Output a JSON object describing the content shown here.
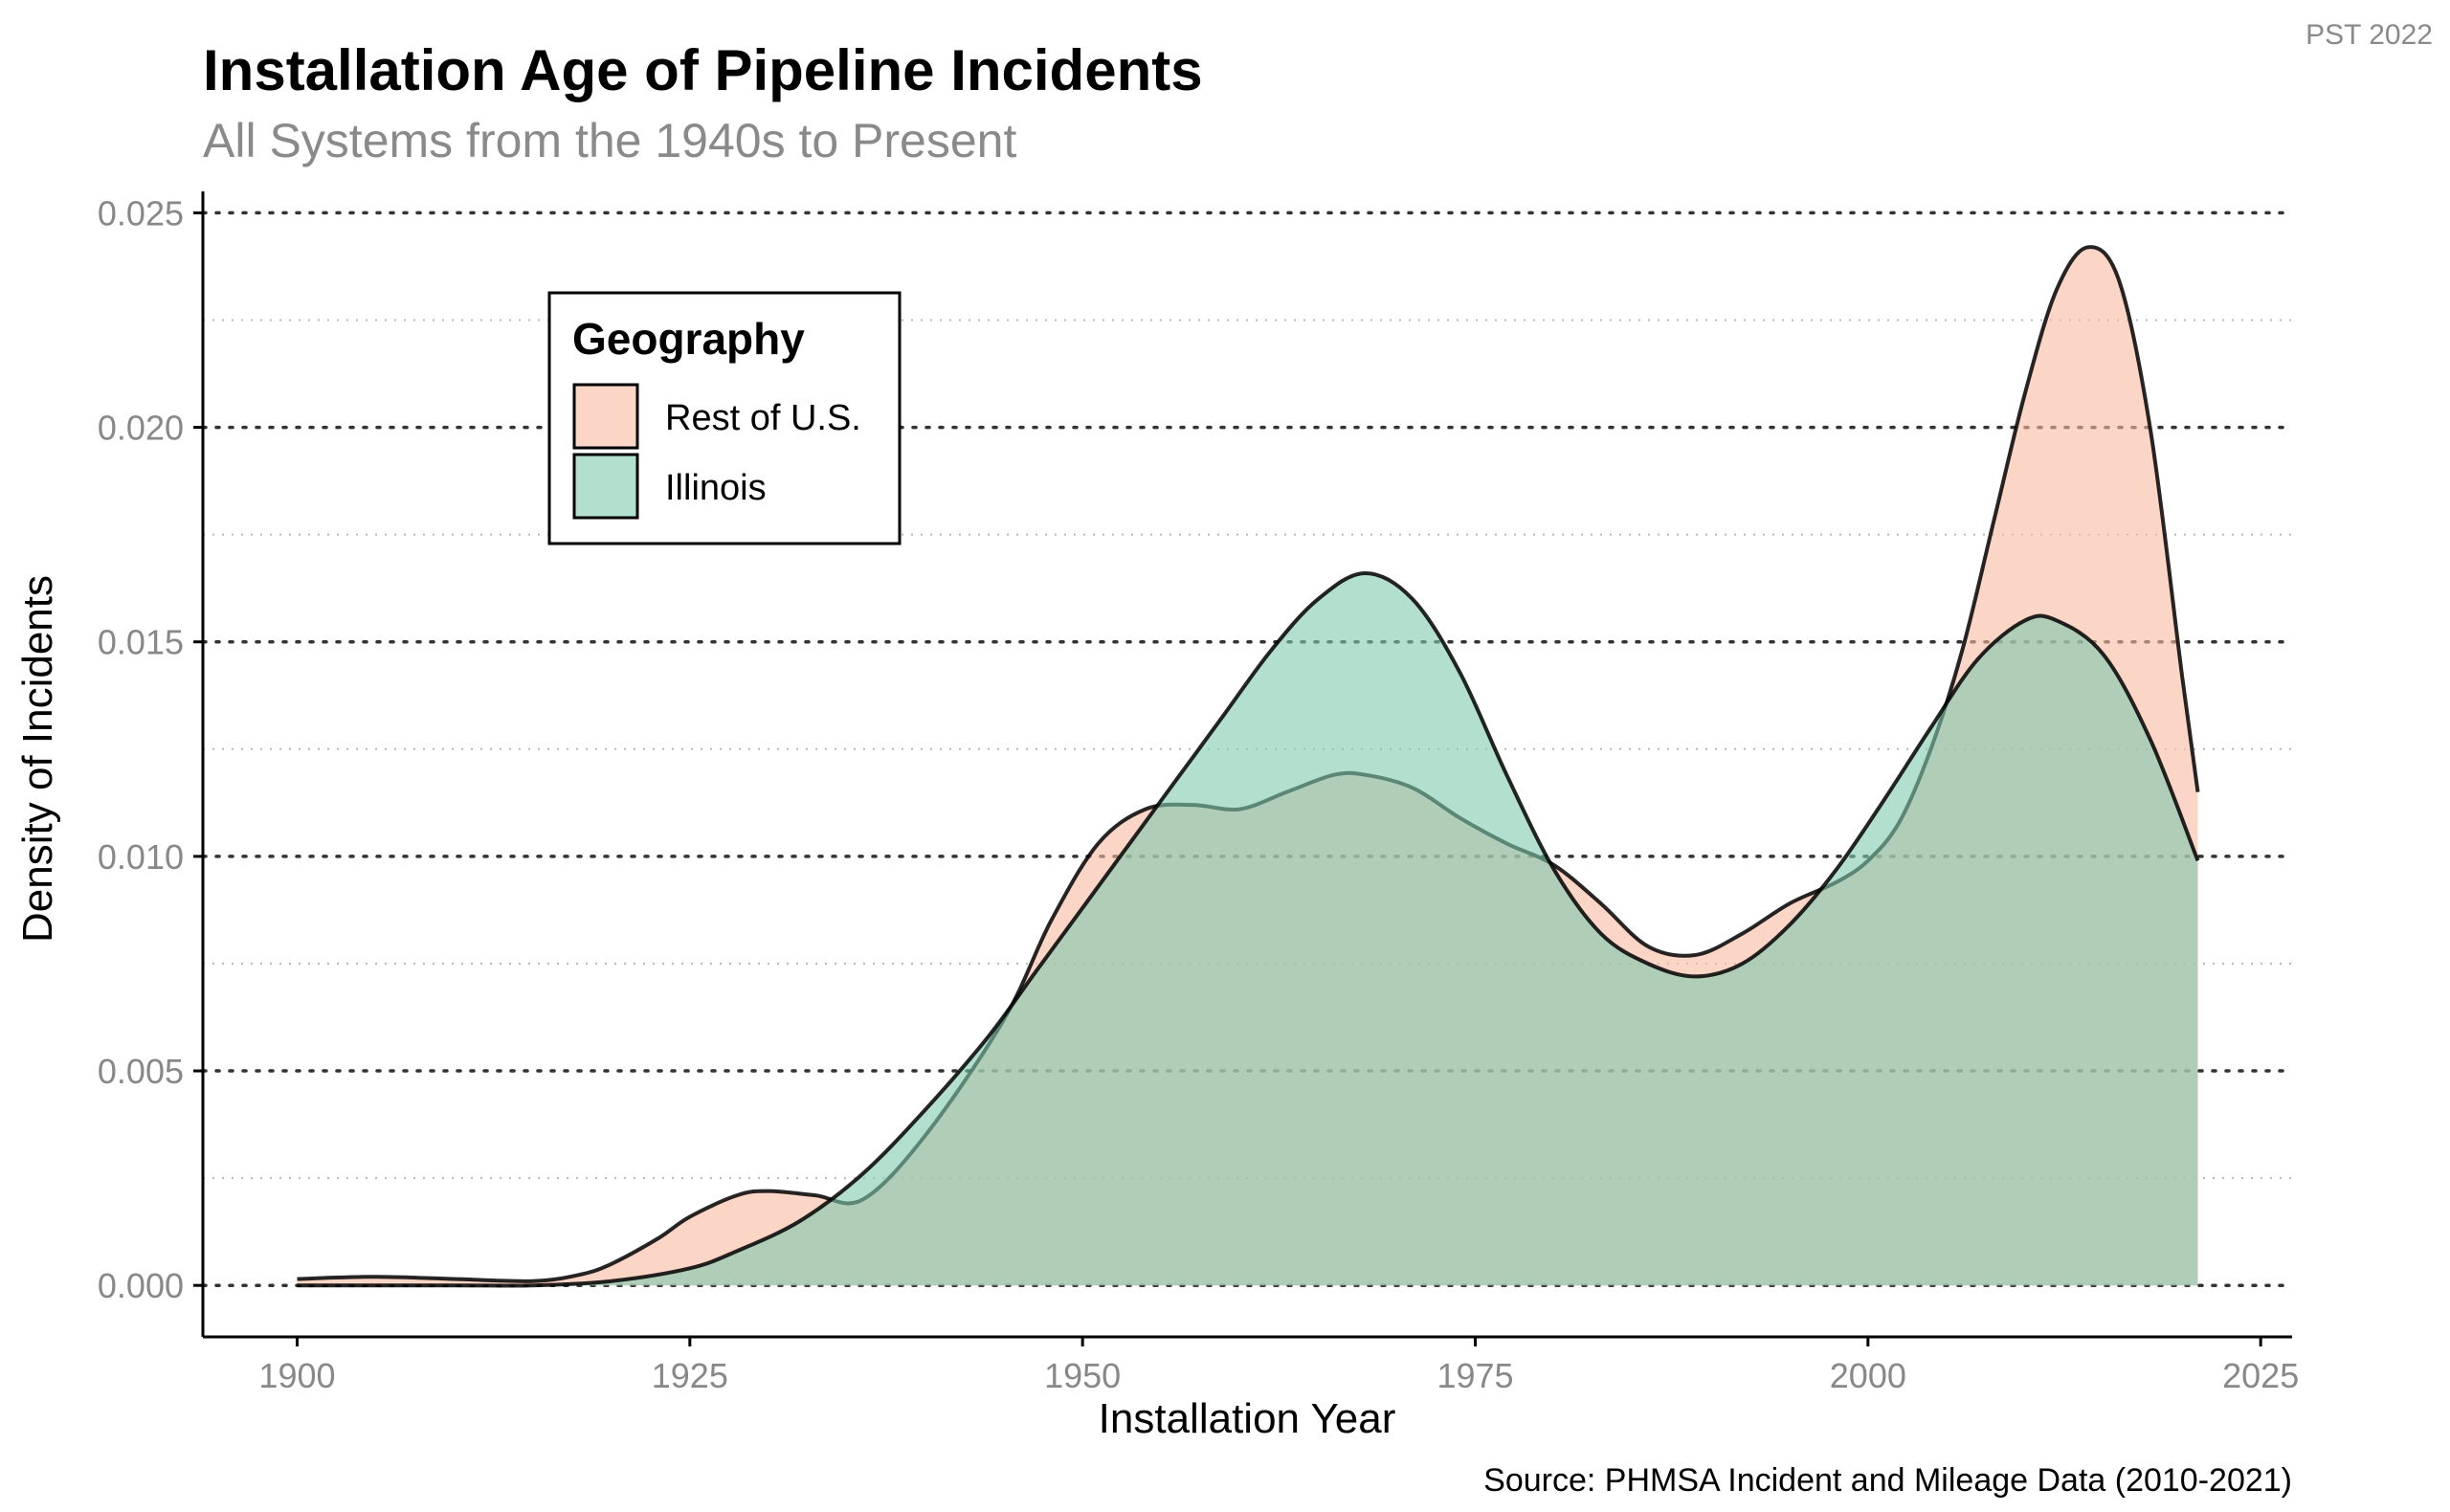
{
  "corner_note": "PST 2022",
  "chart_data": {
    "type": "area",
    "title": "Installation Age of Pipeline Incidents",
    "subtitle": "All Systems from the 1940s to Present",
    "xlabel": "Installation Year",
    "ylabel": "Density of Incidents",
    "caption": "Source: PHMSA Incident and Mileage Data (2010-2021)",
    "xlim": [
      1894,
      2027
    ],
    "ylim": [
      -0.0012,
      0.0255
    ],
    "x_ticks": [
      1900,
      1925,
      1950,
      1975,
      2000,
      2025
    ],
    "x_tick_labels": [
      "1900",
      "1925",
      "1950",
      "1975",
      "2000",
      "2025"
    ],
    "y_ticks": [
      0.0,
      0.005,
      0.01,
      0.015,
      0.02,
      0.025
    ],
    "y_tick_labels": [
      "0.000",
      "0.005",
      "0.010",
      "0.015",
      "0.020",
      "0.025"
    ],
    "y_minor_ticks": [
      0.0025,
      0.0075,
      0.0125,
      0.0175,
      0.0225
    ],
    "grid": "horizontal dotted",
    "legend": {
      "title": "Geography",
      "position": "top-left",
      "entries": [
        "Rest of U.S.",
        "Illinois"
      ]
    },
    "series": [
      {
        "name": "Rest of U.S.",
        "color": "#f9b9a0",
        "points": [
          [
            1900,
            0.00015
          ],
          [
            1905,
            0.0002
          ],
          [
            1910,
            0.00015
          ],
          [
            1915,
            0.0001
          ],
          [
            1918,
            0.00025
          ],
          [
            1920,
            0.0005
          ],
          [
            1923,
            0.0011
          ],
          [
            1925,
            0.0016
          ],
          [
            1928,
            0.0021
          ],
          [
            1930,
            0.0022
          ],
          [
            1933,
            0.0021
          ],
          [
            1936,
            0.002
          ],
          [
            1940,
            0.0035
          ],
          [
            1945,
            0.0062
          ],
          [
            1948,
            0.0085
          ],
          [
            1951,
            0.0103
          ],
          [
            1954,
            0.0111
          ],
          [
            1957,
            0.0112
          ],
          [
            1960,
            0.0111
          ],
          [
            1963,
            0.0115
          ],
          [
            1966,
            0.0119
          ],
          [
            1968,
            0.0119
          ],
          [
            1971,
            0.0116
          ],
          [
            1974,
            0.0109
          ],
          [
            1977,
            0.0103
          ],
          [
            1980,
            0.0098
          ],
          [
            1983,
            0.0089
          ],
          [
            1986,
            0.0079
          ],
          [
            1989,
            0.0077
          ],
          [
            1992,
            0.0082
          ],
          [
            1995,
            0.0089
          ],
          [
            1998,
            0.0094
          ],
          [
            2000,
            0.0099
          ],
          [
            2002,
            0.0108
          ],
          [
            2004,
            0.0125
          ],
          [
            2006,
            0.0148
          ],
          [
            2008,
            0.0178
          ],
          [
            2010,
            0.0208
          ],
          [
            2012,
            0.0232
          ],
          [
            2014,
            0.0242
          ],
          [
            2016,
            0.0234
          ],
          [
            2018,
            0.0199
          ],
          [
            2020,
            0.0142
          ],
          [
            2021,
            0.0115
          ]
        ]
      },
      {
        "name": "Illinois",
        "color": "#7ec9ad",
        "points": [
          [
            1900,
            0.0
          ],
          [
            1910,
            0.0
          ],
          [
            1915,
            0.0
          ],
          [
            1920,
            0.0001
          ],
          [
            1925,
            0.0004
          ],
          [
            1928,
            0.0008
          ],
          [
            1932,
            0.0015
          ],
          [
            1936,
            0.0026
          ],
          [
            1940,
            0.0041
          ],
          [
            1944,
            0.0058
          ],
          [
            1947,
            0.0073
          ],
          [
            1950,
            0.0088
          ],
          [
            1953,
            0.0103
          ],
          [
            1956,
            0.0118
          ],
          [
            1959,
            0.0133
          ],
          [
            1962,
            0.0148
          ],
          [
            1965,
            0.016
          ],
          [
            1968,
            0.0166
          ],
          [
            1971,
            0.016
          ],
          [
            1974,
            0.0143
          ],
          [
            1977,
            0.0119
          ],
          [
            1980,
            0.0097
          ],
          [
            1983,
            0.0082
          ],
          [
            1986,
            0.0075
          ],
          [
            1989,
            0.0072
          ],
          [
            1992,
            0.0075
          ],
          [
            1995,
            0.0084
          ],
          [
            1998,
            0.0097
          ],
          [
            2001,
            0.0113
          ],
          [
            2004,
            0.013
          ],
          [
            2007,
            0.0146
          ],
          [
            2010,
            0.0155
          ],
          [
            2012,
            0.0155
          ],
          [
            2015,
            0.0147
          ],
          [
            2018,
            0.0127
          ],
          [
            2021,
            0.0099
          ]
        ]
      }
    ]
  }
}
